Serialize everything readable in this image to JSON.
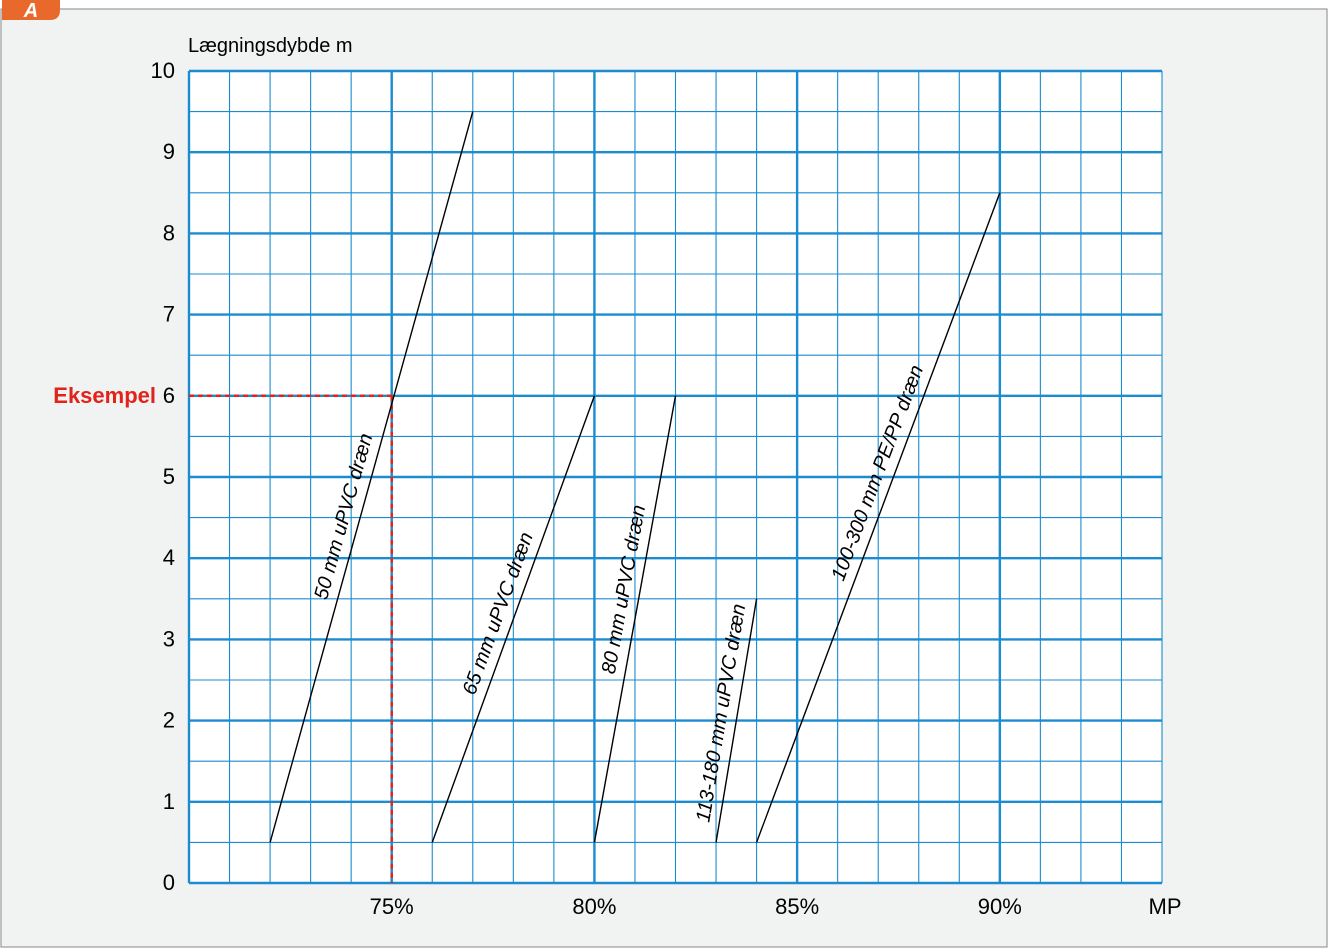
{
  "badge": {
    "label": "A"
  },
  "colors": {
    "panel_bg": "#f1f2f2",
    "panel_border": "#9a9a9a",
    "plot_bg": "#ffffff",
    "grid_major": "#1b8ccf",
    "grid_minor": "#1b8ccf",
    "line": "#000000",
    "example": "#e2231a",
    "badge": "#e9692c",
    "text": "#000000"
  },
  "chart_data": {
    "type": "line",
    "title": "",
    "xlabel": "MP",
    "ylabel": "Lægningsdybde m",
    "xlim": [
      70,
      94
    ],
    "ylim": [
      0,
      10
    ],
    "grid": true,
    "x_ticks": [
      {
        "value": 75,
        "label": "75%"
      },
      {
        "value": 80,
        "label": "80%"
      },
      {
        "value": 85,
        "label": "85%"
      },
      {
        "value": 90,
        "label": "90%"
      }
    ],
    "y_ticks": [
      {
        "value": 0,
        "label": "0"
      },
      {
        "value": 1,
        "label": "1"
      },
      {
        "value": 2,
        "label": "2"
      },
      {
        "value": 3,
        "label": "3"
      },
      {
        "value": 4,
        "label": "4"
      },
      {
        "value": 5,
        "label": "5"
      },
      {
        "value": 6,
        "label": "6"
      },
      {
        "value": 7,
        "label": "7"
      },
      {
        "value": 8,
        "label": "8"
      },
      {
        "value": 9,
        "label": "9"
      },
      {
        "value": 10,
        "label": "10"
      }
    ],
    "series": [
      {
        "name": "50 mm uPVC dræn",
        "x": [
          72,
          77
        ],
        "y": [
          0.5,
          9.5
        ]
      },
      {
        "name": "65 mm uPVC dræn",
        "x": [
          76,
          80
        ],
        "y": [
          0.5,
          6
        ]
      },
      {
        "name": "80 mm uPVC dræn",
        "x": [
          80,
          82
        ],
        "y": [
          0.5,
          6
        ]
      },
      {
        "name": "113-180 mm uPVC dræn",
        "x": [
          83,
          84
        ],
        "y": [
          0.5,
          3.5
        ]
      },
      {
        "name": "100-300 mm PE/PP dræn",
        "x": [
          84,
          90
        ],
        "y": [
          0.5,
          8.5
        ]
      }
    ],
    "annotations": [
      {
        "label": "Eksempel",
        "x": 75,
        "y": 6
      }
    ]
  }
}
